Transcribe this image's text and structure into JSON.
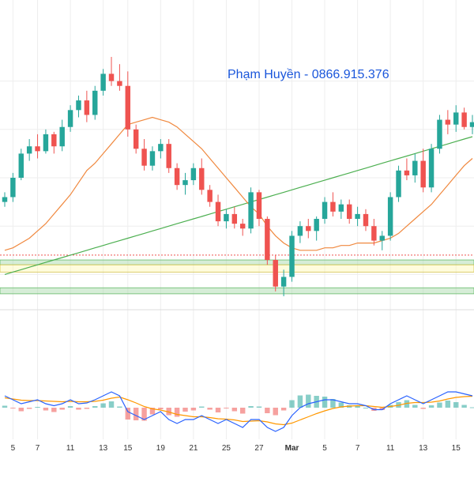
{
  "watermark": "Phạm Huyền - 0866.915.376",
  "colors": {
    "up": "#26a69a",
    "down": "#ef5350",
    "ma_fast": "#f0883e",
    "ma_slow": "#4caf50",
    "macd": "#2962ff",
    "signal": "#ff9800",
    "zone_green": "#a5d6a7",
    "zone_yellow": "#fff59d",
    "price_line": "#ef5350",
    "grid": "#eeeeee"
  },
  "chart_data": {
    "type": "candlestick",
    "grid": true,
    "x_tick_labels": [
      "5",
      "7",
      "11",
      "13",
      "15",
      "19",
      "21",
      "25",
      "27",
      "Mar",
      "5",
      "7",
      "11",
      "13",
      "15"
    ],
    "x_tick_index": [
      1,
      4,
      8,
      12,
      15,
      19,
      23,
      27,
      31,
      35,
      39,
      43,
      47,
      51,
      55
    ],
    "price_range": [
      0,
      100
    ],
    "candles": [
      [
        40,
        44,
        38,
        42
      ],
      [
        42,
        52,
        40,
        50
      ],
      [
        50,
        62,
        49,
        60
      ],
      [
        60,
        66,
        57,
        63
      ],
      [
        63,
        68,
        58,
        61
      ],
      [
        61,
        70,
        60,
        68
      ],
      [
        68,
        69,
        60,
        63
      ],
      [
        63,
        74,
        61,
        71
      ],
      [
        71,
        80,
        69,
        78
      ],
      [
        78,
        84,
        75,
        82
      ],
      [
        82,
        86,
        73,
        76
      ],
      [
        76,
        88,
        74,
        86
      ],
      [
        86,
        95,
        84,
        93
      ],
      [
        93,
        100,
        88,
        90
      ],
      [
        90,
        97,
        86,
        88
      ],
      [
        88,
        94,
        67,
        70
      ],
      [
        70,
        72,
        60,
        62
      ],
      [
        62,
        66,
        53,
        55
      ],
      [
        55,
        63,
        53,
        61
      ],
      [
        61,
        66,
        58,
        64
      ],
      [
        64,
        66,
        52,
        54
      ],
      [
        54,
        56,
        45,
        47
      ],
      [
        47,
        52,
        43,
        49
      ],
      [
        49,
        56,
        47,
        54
      ],
      [
        54,
        58,
        43,
        45
      ],
      [
        45,
        47,
        38,
        40
      ],
      [
        40,
        43,
        30,
        32
      ],
      [
        32,
        37,
        29,
        35
      ],
      [
        35,
        38,
        29,
        31
      ],
      [
        31,
        33,
        26,
        29
      ],
      [
        29,
        46,
        27,
        44
      ],
      [
        44,
        45,
        30,
        33
      ],
      [
        33,
        34,
        14,
        16
      ],
      [
        16,
        18,
        3,
        5
      ],
      [
        5,
        12,
        1,
        9
      ],
      [
        9,
        28,
        7,
        26
      ],
      [
        26,
        32,
        23,
        30
      ],
      [
        30,
        33,
        25,
        28
      ],
      [
        28,
        34,
        24,
        33
      ],
      [
        33,
        42,
        31,
        40
      ],
      [
        40,
        44,
        34,
        36
      ],
      [
        36,
        41,
        33,
        39
      ],
      [
        39,
        41,
        31,
        33
      ],
      [
        33,
        38,
        30,
        35
      ],
      [
        35,
        37,
        28,
        30
      ],
      [
        30,
        33,
        22,
        24
      ],
      [
        24,
        28,
        20,
        26
      ],
      [
        26,
        44,
        24,
        42
      ],
      [
        42,
        55,
        40,
        53
      ],
      [
        53,
        58,
        49,
        51
      ],
      [
        51,
        60,
        48,
        57
      ],
      [
        57,
        62,
        44,
        46
      ],
      [
        46,
        64,
        44,
        62
      ],
      [
        62,
        76,
        60,
        74
      ],
      [
        74,
        78,
        68,
        72
      ],
      [
        72,
        80,
        69,
        77
      ],
      [
        77,
        79,
        70,
        71
      ],
      [
        71,
        76,
        68,
        73
      ]
    ],
    "ma_fast": [
      20,
      21,
      23,
      25,
      28,
      31,
      35,
      39,
      43,
      48,
      53,
      56,
      60,
      64,
      68,
      72,
      73,
      74,
      75,
      74,
      73,
      71,
      68,
      65,
      62,
      58,
      54,
      50,
      46,
      42,
      38,
      35,
      30,
      26,
      23,
      21,
      20,
      20,
      20,
      21,
      21,
      22,
      22,
      23,
      23,
      23,
      24,
      25,
      27,
      30,
      33,
      36,
      39,
      43,
      47,
      51,
      55,
      58
    ],
    "ma_slow": [
      10,
      11,
      12,
      13,
      14,
      15,
      16,
      17,
      18,
      19,
      20,
      21,
      22,
      23,
      24,
      25,
      26,
      27,
      28,
      29,
      30,
      31,
      32,
      33,
      34,
      35,
      36,
      37,
      38,
      39,
      40,
      41,
      42,
      43,
      44,
      45,
      46,
      47,
      48,
      49,
      50,
      51,
      52,
      53,
      54,
      55,
      56,
      57,
      58,
      59,
      60,
      61,
      62,
      63,
      64,
      65,
      66,
      67
    ],
    "macd": [
      3,
      2,
      1,
      1.5,
      2,
      1,
      0.5,
      1,
      2,
      1,
      1.2,
      2,
      3,
      4,
      3,
      -1,
      -2,
      -3,
      -2,
      -1,
      -3,
      -4,
      -3,
      -3,
      -2,
      -3,
      -4,
      -3,
      -4,
      -5,
      -3,
      -3,
      -5,
      -6,
      -5,
      -2,
      0,
      1,
      1.5,
      2,
      2,
      1.5,
      1,
      1,
      0.5,
      -0.5,
      -0.5,
      1,
      2,
      3,
      2,
      1,
      2,
      3,
      4,
      4,
      3.5,
      3
    ],
    "macd_signal": [
      2.5,
      2.2,
      1.9,
      1.8,
      1.8,
      1.7,
      1.6,
      1.5,
      1.6,
      1.5,
      1.5,
      1.6,
      1.9,
      2.4,
      2.7,
      2,
      1.2,
      0.3,
      -0.3,
      -0.6,
      -1.1,
      -1.7,
      -2,
      -2.3,
      -2.3,
      -2.5,
      -2.8,
      -2.9,
      -3.1,
      -3.5,
      -3.4,
      -3.3,
      -3.6,
      -4.1,
      -4.3,
      -3.9,
      -3.1,
      -2.3,
      -1.5,
      -0.8,
      -0.2,
      0.2,
      0.4,
      0.5,
      0.5,
      0.3,
      0.1,
      0.3,
      0.6,
      1.1,
      1.3,
      1.3,
      1.4,
      1.7,
      2.2,
      2.6,
      2.8,
      2.9
    ],
    "support_zones": [
      {
        "from": 14,
        "to": 16,
        "color": "green"
      },
      {
        "from": 11,
        "to": 14,
        "color": "yellow"
      },
      {
        "from": 2,
        "to": 4.5,
        "color": "green"
      }
    ],
    "last_price_level": 18
  }
}
